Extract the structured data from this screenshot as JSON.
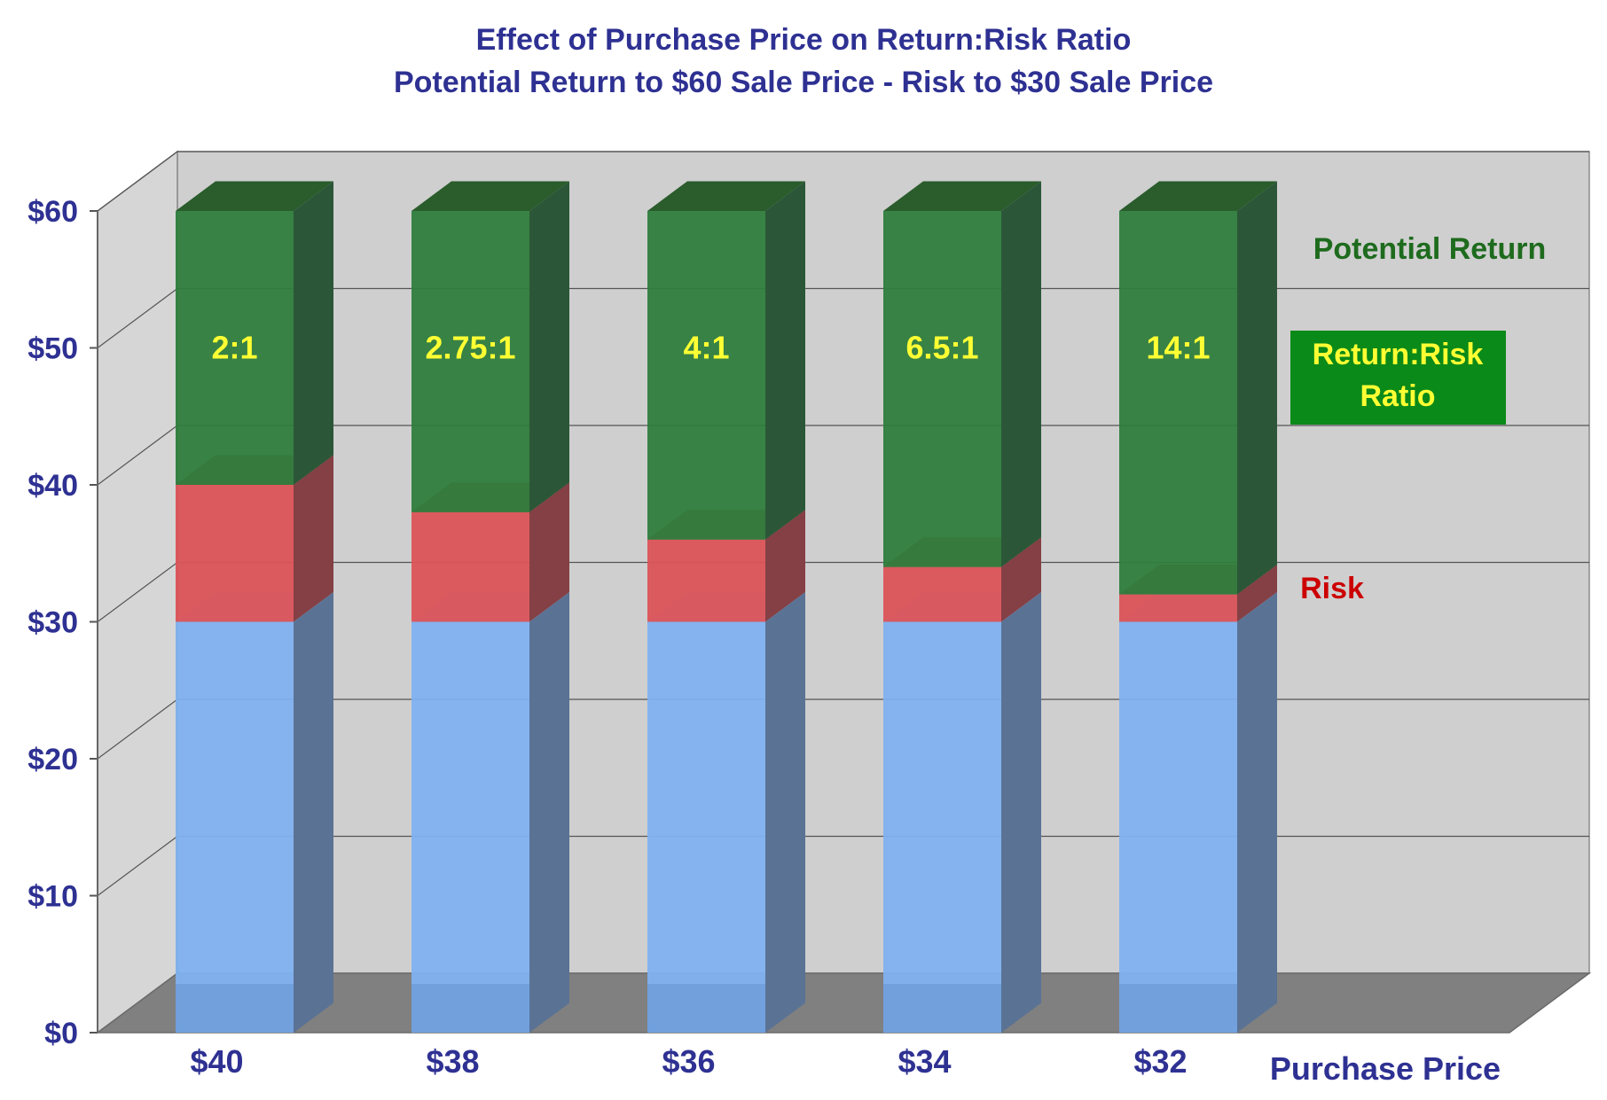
{
  "chart_data": {
    "type": "bar",
    "stacked": true,
    "style": "3d",
    "title": "Effect of Purchase Price on Return:Risk Ratio",
    "subtitle": "Potential Return to $60 Sale Price - Risk to $30 Sale Price",
    "xlabel": "Purchase Price",
    "ylabel": "",
    "ylim": [
      0,
      60
    ],
    "y_ticks": [
      "$0",
      "$10",
      "$20",
      "$30",
      "$40",
      "$50",
      "$60"
    ],
    "categories": [
      "$40",
      "$38",
      "$36",
      "$34",
      "$32"
    ],
    "series": [
      {
        "values": [
          30,
          30,
          30,
          30,
          30
        ],
        "color": "#7FB1F0"
      },
      {
        "name": "Risk",
        "values": [
          10,
          8,
          6,
          4,
          2
        ],
        "color": "#DB5357"
      },
      {
        "name": "Potential Return",
        "values": [
          20,
          22,
          24,
          26,
          28
        ],
        "color": "#2E7D3C"
      }
    ],
    "ratio_labels": [
      "2:1",
      "2.75:1",
      "4:1",
      "6.5:1",
      "14:1"
    ],
    "annotations": {
      "potential_return": "Potential Return",
      "ratio_box": [
        "Return:Risk",
        "Ratio"
      ],
      "risk": "Risk"
    },
    "grid": true,
    "colors": {
      "title": "#2E3192",
      "axis_text": "#2E3192",
      "ratio_text": "#FFFF33",
      "ratio_box": "#0A8A18",
      "risk_text": "#CC0000",
      "return_text": "#1E6B1E",
      "wall": "#CFCFCF",
      "floor": "#808080",
      "grid": "#555555"
    }
  }
}
